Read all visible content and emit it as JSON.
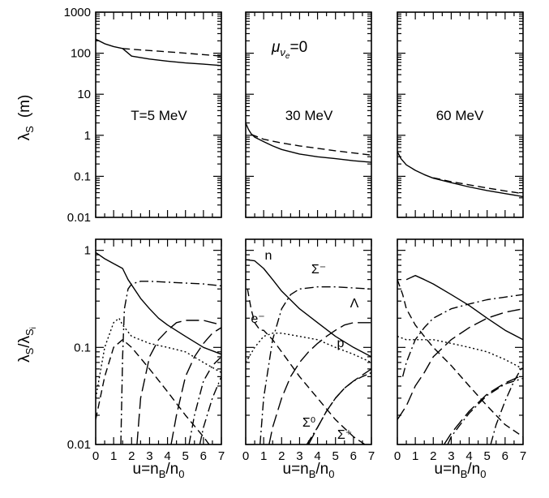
{
  "chart_data": [
    {
      "type": "line",
      "panel": "top-left",
      "yscale": "log",
      "ylim": [
        0.01,
        1000
      ],
      "xlim": [
        0,
        7
      ],
      "ylabel": "λS (m)",
      "annotation": "T=5 MeV",
      "series": [
        {
          "style": "solid",
          "x": [
            0,
            0.5,
            1.0,
            1.5,
            2.0,
            3.0,
            4.0,
            5.0,
            6.0,
            7.0
          ],
          "y": [
            220,
            170,
            145,
            130,
            85,
            72,
            64,
            58,
            54,
            50
          ]
        },
        {
          "style": "dashed",
          "x": [
            1.5,
            2.5,
            3.5,
            4.5,
            5.5,
            6.5,
            7.0
          ],
          "y": [
            130,
            120,
            112,
            104,
            96,
            89,
            85
          ]
        }
      ]
    },
    {
      "type": "line",
      "panel": "top-middle",
      "yscale": "log",
      "ylim": [
        0.01,
        1000
      ],
      "xlim": [
        0,
        7
      ],
      "annotation": "30 MeV",
      "mu_label": "μ",
      "mu_sub": "ν",
      "mu_subsub": "e",
      "mu_value": "=0",
      "series": [
        {
          "style": "solid",
          "x": [
            0,
            0.15,
            0.3,
            0.5,
            1.0,
            1.5,
            2.0,
            3.0,
            4.0,
            5.0,
            6.0,
            7.0
          ],
          "y": [
            2.0,
            1.4,
            1.1,
            0.9,
            0.7,
            0.55,
            0.45,
            0.35,
            0.3,
            0.27,
            0.24,
            0.22
          ]
        },
        {
          "style": "dashed",
          "x": [
            0.3,
            1.0,
            2.0,
            3.0,
            4.0,
            5.0,
            6.0,
            7.0
          ],
          "y": [
            1.05,
            0.8,
            0.65,
            0.55,
            0.48,
            0.42,
            0.37,
            0.33
          ]
        }
      ]
    },
    {
      "type": "line",
      "panel": "top-right",
      "yscale": "log",
      "ylim": [
        0.01,
        1000
      ],
      "xlim": [
        0,
        7
      ],
      "annotation": "60 MeV",
      "series": [
        {
          "style": "solid",
          "x": [
            0,
            0.2,
            0.5,
            1.0,
            1.5,
            2.0,
            3.0,
            4.0,
            5.0,
            6.0,
            7.0
          ],
          "y": [
            0.4,
            0.27,
            0.19,
            0.14,
            0.11,
            0.09,
            0.07,
            0.055,
            0.045,
            0.038,
            0.032
          ]
        },
        {
          "style": "dashed",
          "x": [
            2.0,
            3.0,
            4.0,
            5.0,
            6.0,
            7.0
          ],
          "y": [
            0.092,
            0.074,
            0.062,
            0.052,
            0.044,
            0.038
          ]
        }
      ]
    },
    {
      "type": "line",
      "panel": "bottom-left",
      "yscale": "log",
      "ylim": [
        0.01,
        1.3
      ],
      "xlim": [
        0,
        7
      ],
      "ylabel": "λS/λSi",
      "xlabel": "u=nB/n0",
      "series": [
        {
          "style": "solid",
          "x": [
            0,
            0.5,
            1.0,
            1.5,
            1.8,
            2.5,
            3.0,
            3.5,
            4.0,
            5.0,
            6.0,
            7.0
          ],
          "y": [
            0.95,
            0.82,
            0.73,
            0.65,
            0.5,
            0.32,
            0.25,
            0.2,
            0.17,
            0.13,
            0.1,
            0.085
          ]
        },
        {
          "style": "dashdot",
          "x": [
            1.4,
            1.5,
            1.6,
            1.8,
            2.0,
            2.5,
            3.0,
            4.0,
            5.0,
            6.0,
            7.0
          ],
          "y": [
            0.01,
            0.08,
            0.25,
            0.4,
            0.45,
            0.48,
            0.48,
            0.47,
            0.46,
            0.45,
            0.43
          ]
        },
        {
          "style": "dotted",
          "x": [
            0,
            0.5,
            1.0,
            1.3,
            1.5,
            2.0,
            3.0,
            4.0,
            5.0,
            6.0,
            7.0
          ],
          "y": [
            0.03,
            0.1,
            0.18,
            0.2,
            0.17,
            0.13,
            0.11,
            0.1,
            0.09,
            0.07,
            0.055
          ]
        },
        {
          "style": "dashed",
          "x": [
            0,
            0.5,
            1.0,
            1.5,
            2.0,
            3.0,
            4.0,
            5.0,
            6.0,
            6.5
          ],
          "y": [
            0.018,
            0.05,
            0.1,
            0.12,
            0.1,
            0.06,
            0.035,
            0.02,
            0.012,
            0.009
          ]
        },
        {
          "style": "longdash",
          "x": [
            2.3,
            2.5,
            3.0,
            3.5,
            4.0,
            4.5,
            5.0,
            5.5,
            6.0,
            6.5,
            7.0
          ],
          "y": [
            0.01,
            0.03,
            0.08,
            0.12,
            0.15,
            0.18,
            0.19,
            0.19,
            0.19,
            0.18,
            0.17
          ]
        },
        {
          "style": "longdash",
          "x": [
            4.2,
            4.5,
            5.0,
            5.5,
            6.0,
            6.5,
            7.0
          ],
          "y": [
            0.01,
            0.02,
            0.05,
            0.08,
            0.11,
            0.14,
            0.16
          ]
        },
        {
          "style": "dashdot",
          "x": [
            5.2,
            5.5,
            6.0,
            6.5,
            7.0
          ],
          "y": [
            0.01,
            0.02,
            0.045,
            0.065,
            0.08
          ]
        },
        {
          "style": "dashdot",
          "x": [
            5.8,
            6.0,
            6.5,
            7.0
          ],
          "y": [
            0.01,
            0.015,
            0.03,
            0.05
          ]
        }
      ]
    },
    {
      "type": "line",
      "panel": "bottom-middle",
      "yscale": "log",
      "ylim": [
        0.01,
        1.3
      ],
      "xlim": [
        0,
        7
      ],
      "xlabel": "u=nB/n0",
      "labels": {
        "n": "n",
        "sigma_minus": "Σ⁻",
        "lambda": "Λ",
        "e": "e⁻",
        "p": "p",
        "sigma_zero": "Σ⁰",
        "sigma_plus": "Σ⁺"
      },
      "series": [
        {
          "style": "solid",
          "x": [
            0,
            0.5,
            1.0,
            1.5,
            2.0,
            3.0,
            4.0,
            5.0,
            6.0,
            7.0
          ],
          "y": [
            0.8,
            0.78,
            0.65,
            0.5,
            0.38,
            0.25,
            0.18,
            0.13,
            0.1,
            0.08
          ]
        },
        {
          "style": "dashdot",
          "x": [
            0.8,
            1.0,
            1.5,
            2.0,
            2.5,
            3.0,
            4.0,
            5.0,
            6.0,
            7.0
          ],
          "y": [
            0.01,
            0.03,
            0.12,
            0.25,
            0.35,
            0.4,
            0.42,
            0.42,
            0.41,
            0.4
          ]
        },
        {
          "style": "dotted",
          "x": [
            0,
            0.5,
            1.0,
            1.5,
            2.0,
            3.0,
            4.0,
            5.0,
            6.0,
            7.0
          ],
          "y": [
            0.07,
            0.1,
            0.13,
            0.14,
            0.14,
            0.13,
            0.12,
            0.1,
            0.085,
            0.07
          ]
        },
        {
          "style": "dashed",
          "x": [
            0.1,
            0.3,
            0.5,
            0.8,
            1.0,
            1.5,
            2.0,
            3.0,
            4.0,
            5.0,
            6.0,
            7.0
          ],
          "y": [
            0.4,
            0.25,
            0.18,
            0.15,
            0.15,
            0.12,
            0.09,
            0.05,
            0.03,
            0.018,
            0.012,
            0.009
          ]
        },
        {
          "style": "longdash",
          "x": [
            1.3,
            1.5,
            2.0,
            2.5,
            3.0,
            3.5,
            4.0,
            4.5,
            5.0,
            5.5,
            6.0,
            6.5,
            7.0
          ],
          "y": [
            0.01,
            0.015,
            0.03,
            0.05,
            0.07,
            0.09,
            0.11,
            0.13,
            0.15,
            0.17,
            0.18,
            0.18,
            0.18
          ]
        },
        {
          "style": "longdash",
          "x": [
            3.5,
            4.0,
            4.5,
            5.0,
            5.5,
            6.0,
            6.5,
            7.0
          ],
          "y": [
            0.01,
            0.015,
            0.022,
            0.03,
            0.038,
            0.045,
            0.052,
            0.06
          ]
        },
        {
          "style": "dashdot",
          "x": [
            3.4,
            4.0,
            4.5,
            5.0,
            5.5,
            6.0,
            6.5,
            7.0
          ],
          "y": [
            0.01,
            0.015,
            0.022,
            0.03,
            0.038,
            0.045,
            0.05,
            0.055
          ]
        }
      ]
    },
    {
      "type": "line",
      "panel": "bottom-right",
      "yscale": "log",
      "ylim": [
        0.01,
        1.3
      ],
      "xlim": [
        0,
        7
      ],
      "xlabel": "u=nB/n0",
      "series": [
        {
          "style": "solid",
          "x": [
            0.5,
            1.0,
            1.5,
            2.0,
            3.0,
            4.0,
            5.0,
            6.0,
            7.0
          ],
          "y": [
            0.5,
            0.55,
            0.5,
            0.45,
            0.35,
            0.27,
            0.2,
            0.15,
            0.12
          ]
        },
        {
          "style": "dashdot",
          "x": [
            0.3,
            0.5,
            1.0,
            1.5,
            2.0,
            3.0,
            4.0,
            5.0,
            6.0,
            7.0
          ],
          "y": [
            0.05,
            0.07,
            0.12,
            0.16,
            0.2,
            0.25,
            0.28,
            0.31,
            0.33,
            0.35
          ]
        },
        {
          "style": "dotted",
          "x": [
            0,
            0.5,
            1.0,
            1.5,
            2.0,
            3.0,
            4.0,
            5.0,
            6.0,
            7.0
          ],
          "y": [
            0.13,
            0.12,
            0.12,
            0.12,
            0.12,
            0.11,
            0.1,
            0.09,
            0.075,
            0.06
          ]
        },
        {
          "style": "dashed",
          "x": [
            0,
            0.3,
            0.5,
            1.0,
            1.5,
            2.0,
            3.0,
            4.0,
            5.0,
            6.0,
            7.0
          ],
          "y": [
            0.5,
            0.35,
            0.25,
            0.17,
            0.13,
            0.1,
            0.065,
            0.04,
            0.025,
            0.016,
            0.012
          ]
        },
        {
          "style": "longdash",
          "x": [
            0,
            0.5,
            1.0,
            1.5,
            2.0,
            3.0,
            4.0,
            5.0,
            6.0,
            7.0
          ],
          "y": [
            0.018,
            0.025,
            0.04,
            0.055,
            0.08,
            0.12,
            0.16,
            0.2,
            0.23,
            0.25
          ]
        },
        {
          "style": "longdash",
          "x": [
            2.6,
            3.0,
            3.5,
            4.0,
            5.0,
            6.0,
            7.0
          ],
          "y": [
            0.01,
            0.013,
            0.017,
            0.022,
            0.033,
            0.043,
            0.052
          ]
        },
        {
          "style": "dashdot",
          "x": [
            2.8,
            3.0,
            3.5,
            4.0,
            5.0,
            6.0,
            7.0
          ],
          "y": [
            0.01,
            0.012,
            0.016,
            0.021,
            0.032,
            0.042,
            0.048
          ]
        },
        {
          "style": "dashdot",
          "x": [
            5.2,
            5.5,
            6.0,
            6.5,
            7.0
          ],
          "y": [
            0.01,
            0.016,
            0.028,
            0.045,
            0.065
          ]
        }
      ]
    }
  ],
  "axes": {
    "top_y_ticks": [
      "0.01",
      "0.1",
      "1",
      "10",
      "100",
      "1000"
    ],
    "bottom_y_ticks": [
      "0.01",
      "0.1",
      "1"
    ],
    "x_ticks": [
      "0",
      "1",
      "2",
      "3",
      "4",
      "5",
      "6",
      "7"
    ],
    "top_ylabel_main": "λ",
    "top_ylabel_sub": "S",
    "top_ylabel_unit": "(m)",
    "bottom_ylabel_num": "λ",
    "bottom_ylabel_num_sub": "S",
    "bottom_ylabel_slash": "/λ",
    "bottom_ylabel_den_sub": "S",
    "bottom_ylabel_den_subsub": "i",
    "xlabel_main": "u=n",
    "xlabel_sub1": "B",
    "xlabel_slash": "/n",
    "xlabel_sub2": "0"
  }
}
